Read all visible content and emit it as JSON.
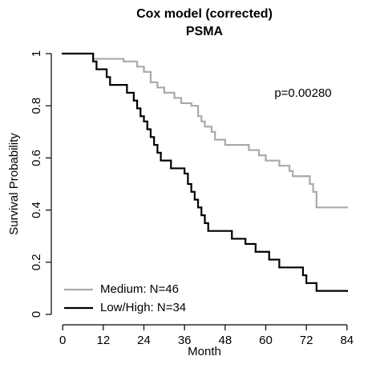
{
  "chart_data": {
    "type": "step",
    "title": "Cox model (corrected)",
    "subtitle": "PSMA",
    "x_label": "Month",
    "y_label": "Survival Probability",
    "annotation": "p=0.00280",
    "xlim": [
      -3.36,
      87.36
    ],
    "ylim": [
      -0.04,
      1.04
    ],
    "xticks": [
      0,
      12,
      24,
      36,
      48,
      60,
      72,
      84
    ],
    "yticks": [
      0,
      0.2,
      0.4,
      0.6,
      0.8,
      1
    ],
    "legend": "bottom-left",
    "series": [
      {
        "name": "Medium: N=46",
        "color": "#aaaaaa",
        "x": [
          0,
          9,
          18,
          22,
          24,
          26,
          28,
          30,
          33,
          35,
          38,
          40,
          41,
          42,
          44,
          45,
          48,
          55,
          58,
          60,
          64,
          67,
          68,
          73,
          74,
          75,
          84
        ],
        "values": [
          1,
          0.98,
          0.97,
          0.95,
          0.93,
          0.89,
          0.87,
          0.85,
          0.83,
          0.81,
          0.8,
          0.76,
          0.74,
          0.72,
          0.7,
          0.67,
          0.65,
          0.63,
          0.61,
          0.59,
          0.57,
          0.55,
          0.53,
          0.5,
          0.47,
          0.41,
          0.41
        ]
      },
      {
        "name": "Low/High: N=34",
        "color": "#000000",
        "x": [
          0,
          9,
          10,
          13,
          14,
          19,
          21,
          22,
          23,
          24,
          25,
          26,
          27,
          28,
          29,
          32,
          36,
          37,
          38,
          39,
          40,
          41,
          42,
          43,
          50,
          54,
          57,
          61,
          64,
          71,
          72,
          75,
          84
        ],
        "values": [
          1,
          0.97,
          0.94,
          0.91,
          0.88,
          0.85,
          0.82,
          0.79,
          0.76,
          0.74,
          0.71,
          0.68,
          0.65,
          0.62,
          0.59,
          0.56,
          0.54,
          0.5,
          0.47,
          0.44,
          0.41,
          0.38,
          0.35,
          0.32,
          0.29,
          0.27,
          0.24,
          0.21,
          0.18,
          0.15,
          0.12,
          0.09,
          0.09
        ]
      }
    ]
  }
}
